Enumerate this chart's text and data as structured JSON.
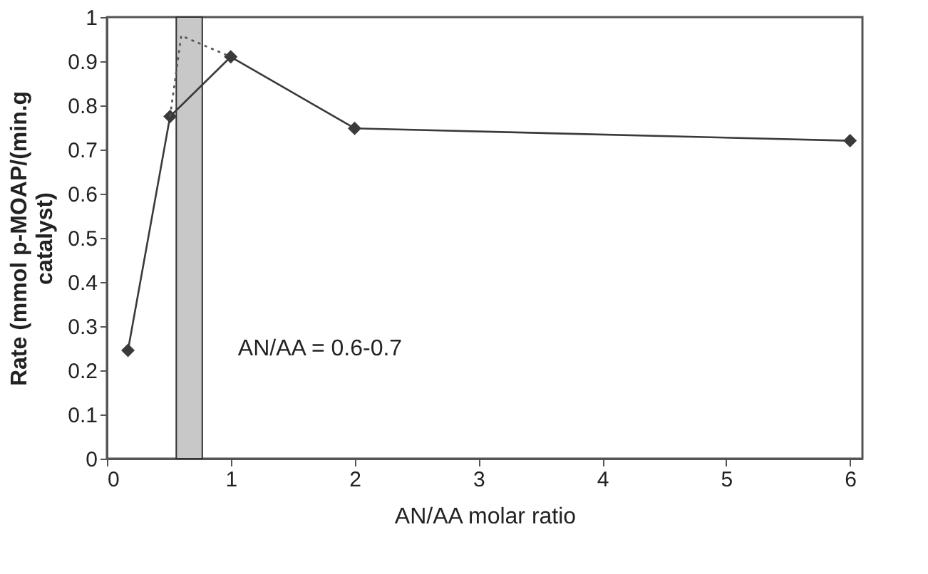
{
  "chart_data": {
    "type": "line",
    "xlabel": "AN/AA molar ratio",
    "ylabel": "Rate (mmol p-MOAP/(min.g\ncatalyst)",
    "xlim": [
      0,
      6.1
    ],
    "xticks": [
      0,
      1,
      2,
      3,
      4,
      5,
      6
    ],
    "ylim": [
      0,
      1
    ],
    "yticks": [
      0,
      0.1,
      0.2,
      0.3,
      0.4,
      0.5,
      0.6,
      0.7,
      0.8,
      0.9,
      1
    ],
    "grid": false,
    "series": [
      {
        "x": [
          0.17,
          0.51,
          1,
          2,
          6
        ],
        "values": [
          0.245,
          0.775,
          0.91,
          0.748,
          0.72
        ],
        "color": "#3a3a3a",
        "marker": "diamond",
        "line_style": "solid"
      },
      {
        "x": [
          0.51,
          0.6,
          1
        ],
        "values": [
          0.775,
          0.958,
          0.91
        ],
        "color": "#555555",
        "marker": "none",
        "line_style": "dotted"
      }
    ],
    "bands": [
      {
        "axis": "x",
        "from": 0.56,
        "to": 0.77,
        "label": "AN/AA = 0.6-0.7",
        "color": "#c8c8c8"
      }
    ]
  }
}
